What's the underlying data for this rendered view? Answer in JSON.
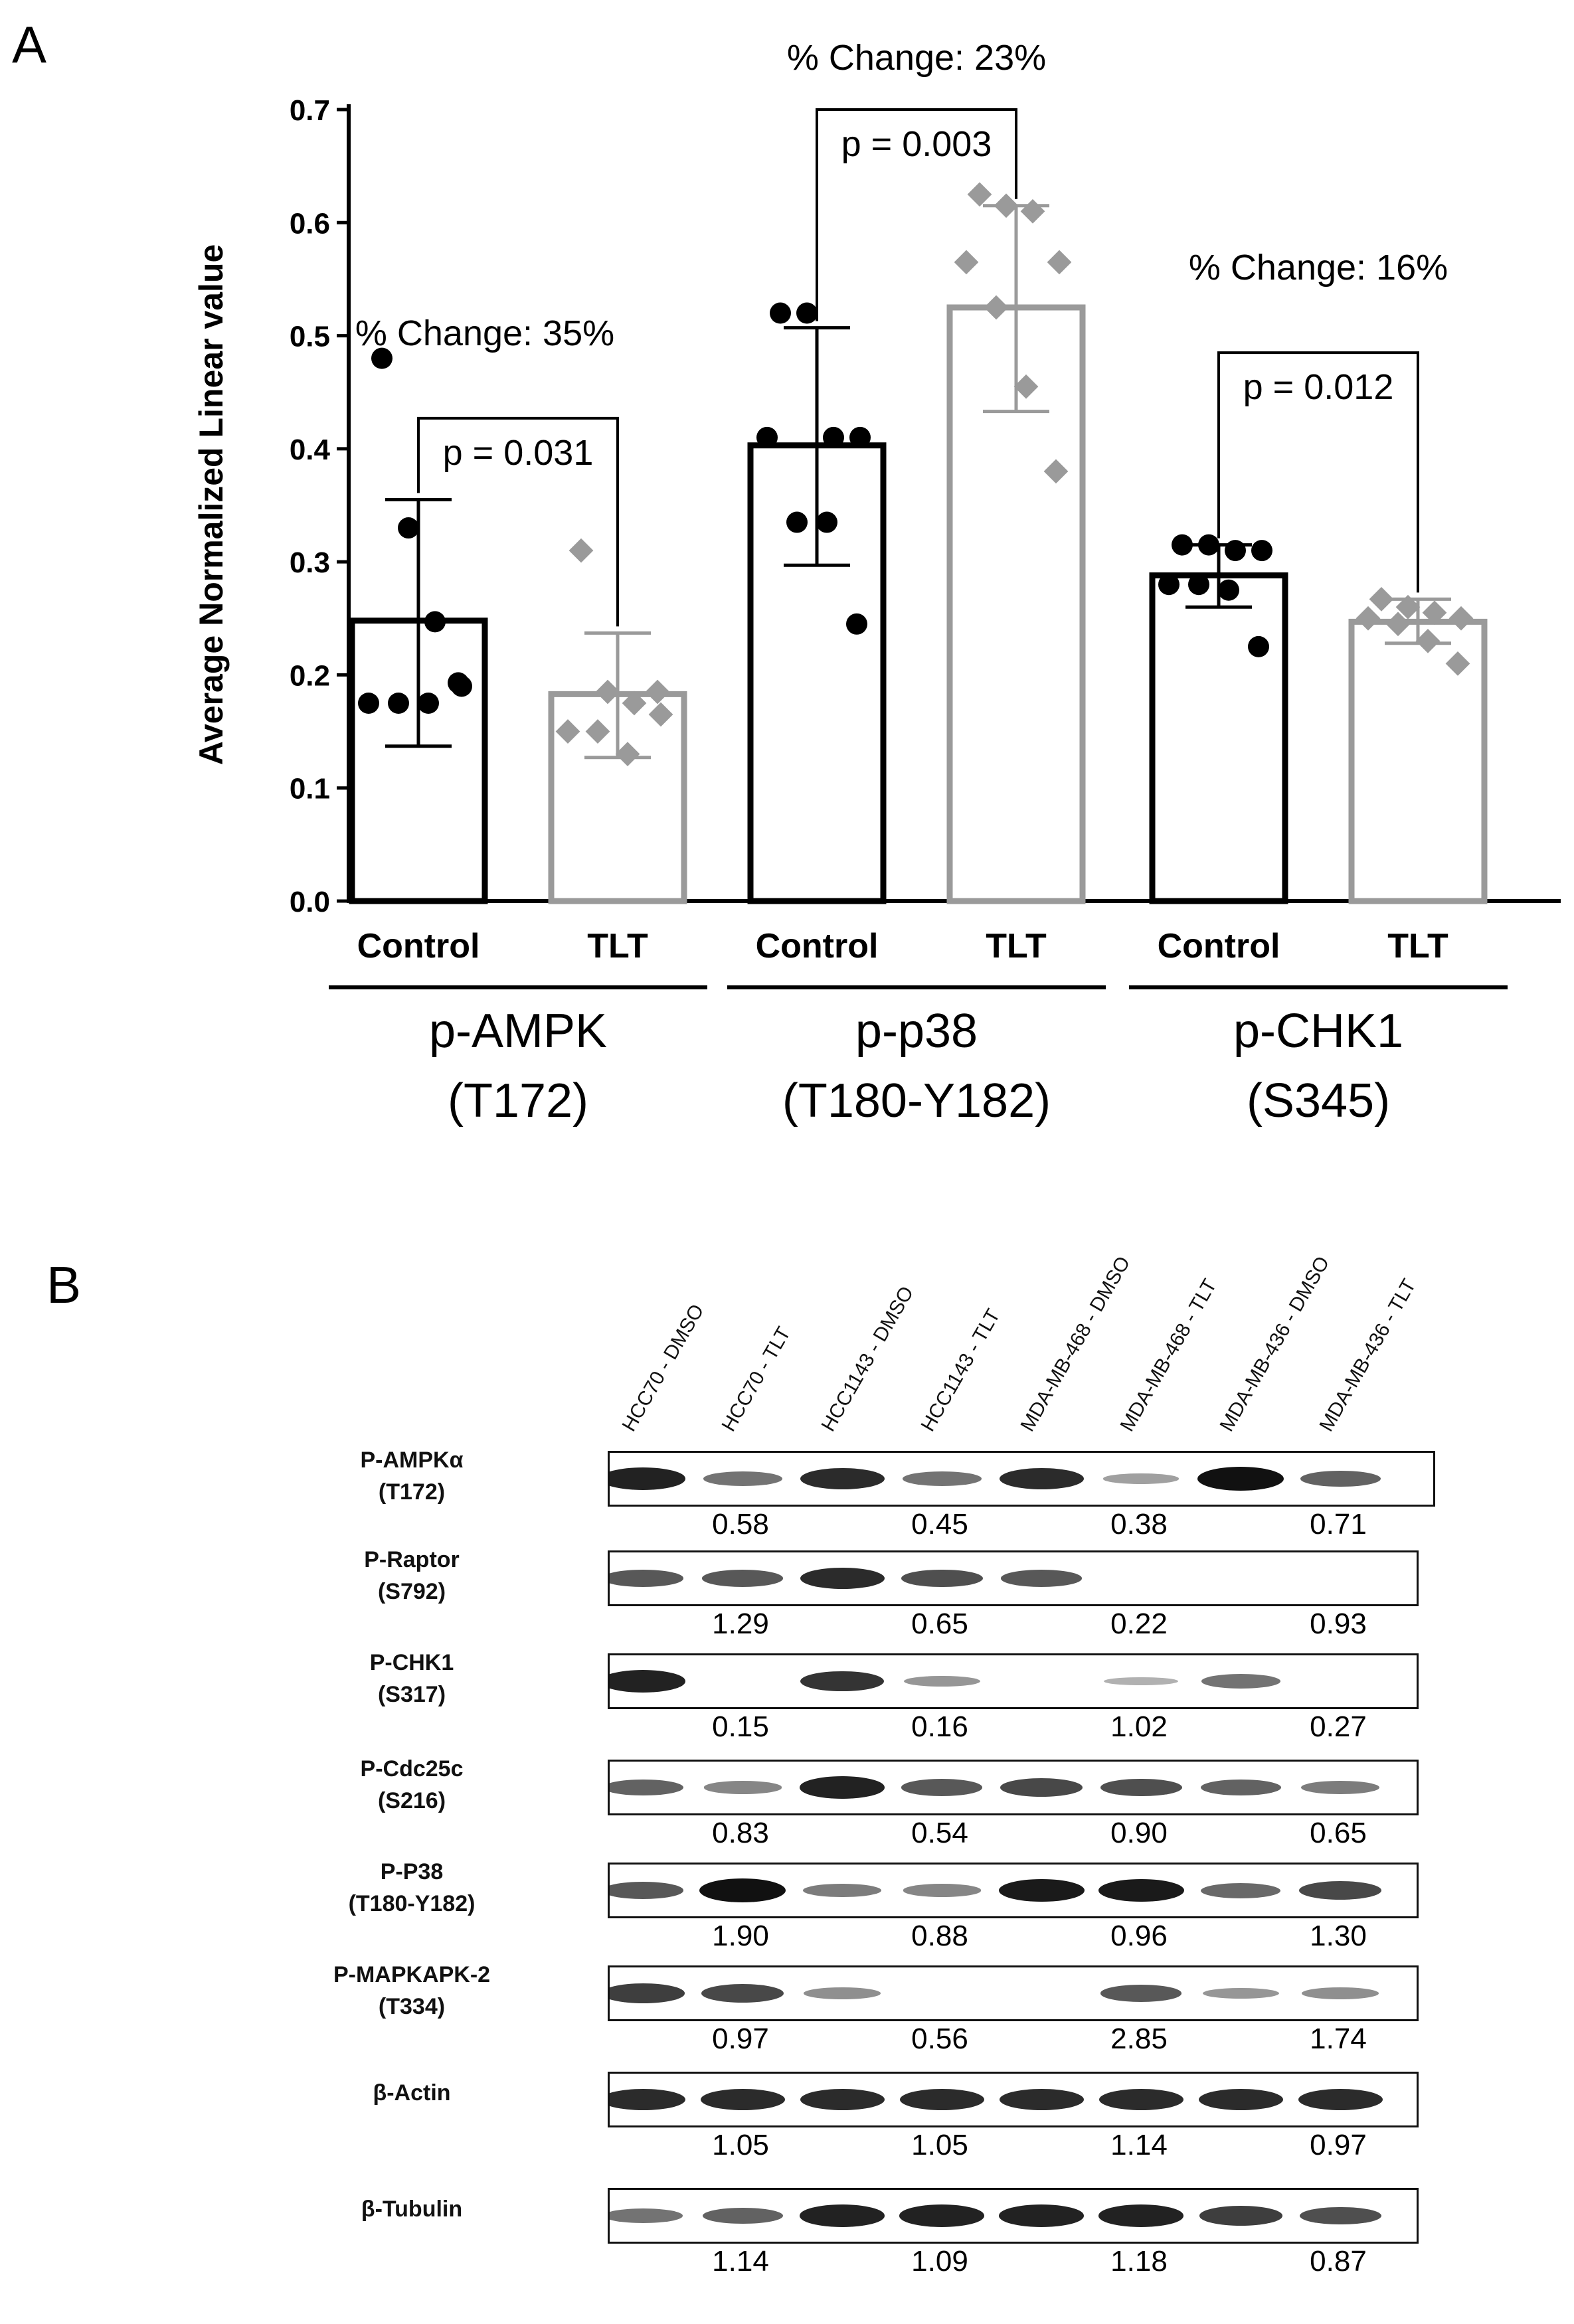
{
  "panel_a": {
    "letter": "A",
    "chart_data": {
      "type": "bar",
      "title": "",
      "ylabel": "Average  Normalized  Linear value",
      "ylim": [
        0,
        0.7
      ],
      "yticks": [
        "0.0",
        "0.1",
        "0.2",
        "0.3",
        "0.4",
        "0.5",
        "0.6",
        "0.7"
      ],
      "groups": [
        {
          "label_line1": "p-AMPK",
          "label_line2": "(T172)",
          "pct_change": "% Change: 35%",
          "p_value": "p = 0.031",
          "bars": [
            {
              "category": "Control",
              "mean": 0.248,
              "sd_low": 0.137,
              "sd_high": 0.355,
              "points": [
                0.48,
                0.33,
                0.247,
                0.19,
                0.175,
                0.175,
                0.175,
                0.193
              ],
              "series": "Control"
            },
            {
              "category": "TLT",
              "mean": 0.183,
              "sd_low": 0.127,
              "sd_high": 0.237,
              "points": [
                0.31,
                0.185,
                0.175,
                0.165,
                0.15,
                0.15,
                0.13,
                0.185
              ],
              "series": "TLT"
            }
          ]
        },
        {
          "label_line1": "p-p38",
          "label_line2": "(T180-Y182)",
          "pct_change": "% Change: 23%",
          "p_value": "p = 0.003",
          "bars": [
            {
              "category": "Control",
              "mean": 0.403,
              "sd_low": 0.297,
              "sd_high": 0.507,
              "points": [
                0.52,
                0.52,
                0.41,
                0.41,
                0.41,
                0.335,
                0.335,
                0.245
              ],
              "series": "Control"
            },
            {
              "category": "TLT",
              "mean": 0.525,
              "sd_low": 0.433,
              "sd_high": 0.615,
              "points": [
                0.625,
                0.615,
                0.61,
                0.565,
                0.565,
                0.525,
                0.455,
                0.38
              ],
              "series": "TLT"
            }
          ]
        },
        {
          "label_line1": "p-CHK1",
          "label_line2": "(S345)",
          "pct_change": "% Change: 16%",
          "p_value": "p = 0.012",
          "bars": [
            {
              "category": "Control",
              "mean": 0.288,
              "sd_low": 0.26,
              "sd_high": 0.315,
              "points": [
                0.315,
                0.315,
                0.31,
                0.31,
                0.28,
                0.28,
                0.275,
                0.225
              ],
              "series": "Control"
            },
            {
              "category": "TLT",
              "mean": 0.247,
              "sd_low": 0.228,
              "sd_high": 0.267,
              "points": [
                0.267,
                0.26,
                0.255,
                0.25,
                0.25,
                0.245,
                0.23,
                0.21
              ],
              "series": "TLT"
            }
          ]
        }
      ],
      "series_colors": {
        "Control": "#000000",
        "TLT": "#9a9a9a"
      }
    }
  },
  "panel_b": {
    "letter": "B",
    "lanes": [
      "HCC70 - DMSO",
      "HCC70 - TLT",
      "HCC1143 - DMSO",
      "HCC1143 - TLT",
      "MDA-MB-468 - DMSO",
      "MDA-MB-468 - TLT",
      "MDA-MB-436 - DMSO",
      "MDA-MB-436 - TLT"
    ],
    "rows": [
      {
        "name": "P-AMPKα",
        "site": "(T172)",
        "values": [
          "0.58",
          "0.45",
          "0.38",
          "0.71"
        ],
        "intensity": [
          0.9,
          0.45,
          0.85,
          0.45,
          0.85,
          0.2,
          1.0,
          0.55
        ]
      },
      {
        "name": "P-Raptor",
        "site": "(S792)",
        "values": [
          "1.29",
          "0.65",
          "0.22",
          "0.93"
        ],
        "intensity": [
          0.6,
          0.6,
          0.85,
          0.65,
          0.6,
          0.0,
          0.0,
          0.0
        ]
      },
      {
        "name": "P-CHK1",
        "site": "(S317)",
        "values": [
          "0.15",
          "0.16",
          "1.02",
          "0.27"
        ],
        "intensity": [
          0.9,
          0.0,
          0.8,
          0.25,
          0.0,
          0.1,
          0.45,
          0.0
        ]
      },
      {
        "name": "P-Cdc25c",
        "site": "(S216)",
        "values": [
          "0.83",
          "0.54",
          "0.90",
          "0.65"
        ],
        "intensity": [
          0.55,
          0.35,
          0.9,
          0.6,
          0.7,
          0.65,
          0.55,
          0.4
        ]
      },
      {
        "name": "P-P38",
        "site": "(T180-Y182)",
        "values": [
          "1.90",
          "0.88",
          "0.96",
          "1.30"
        ],
        "intensity": [
          0.6,
          1.0,
          0.4,
          0.35,
          0.95,
          0.95,
          0.5,
          0.7
        ]
      },
      {
        "name": "P-MAPKAPK-2",
        "site": "(T334)",
        "values": [
          "0.97",
          "0.56",
          "2.85",
          "1.74"
        ],
        "intensity": [
          0.75,
          0.7,
          0.3,
          0.0,
          0.0,
          0.6,
          0.25,
          0.3
        ]
      },
      {
        "name": "β-Actin",
        "site": "",
        "values": [
          "1.05",
          "1.05",
          "1.14",
          "0.97"
        ],
        "intensity": [
          0.85,
          0.85,
          0.85,
          0.85,
          0.85,
          0.85,
          0.85,
          0.85
        ]
      },
      {
        "name": "β-Tubulin",
        "site": "",
        "values": [
          "1.14",
          "1.09",
          "1.18",
          "0.87"
        ],
        "intensity": [
          0.45,
          0.55,
          0.9,
          0.9,
          0.9,
          0.9,
          0.75,
          0.65
        ]
      }
    ]
  }
}
